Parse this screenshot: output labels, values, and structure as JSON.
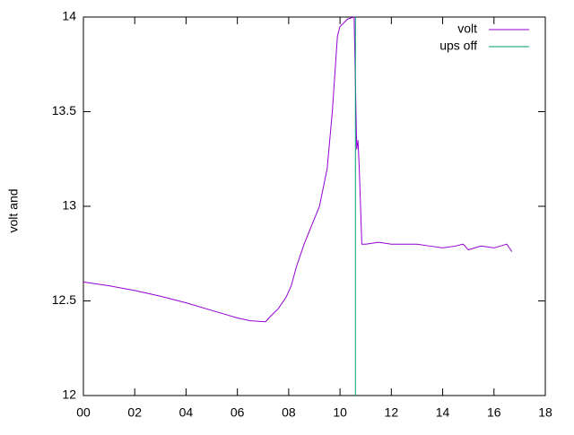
{
  "chart_data": {
    "type": "line",
    "y_label": "volt and",
    "xlim": [
      0,
      18
    ],
    "xticks": [
      {
        "value": 0,
        "label": "00"
      },
      {
        "value": 2,
        "label": "02"
      },
      {
        "value": 4,
        "label": "04"
      },
      {
        "value": 6,
        "label": "06"
      },
      {
        "value": 8,
        "label": "08"
      },
      10,
      12,
      14,
      16,
      18
    ],
    "ylim": [
      12,
      14
    ],
    "yticks": [
      12,
      12.5,
      13,
      13.5,
      14
    ],
    "legend": "top-right",
    "series": [
      {
        "name": "volt",
        "color": "#9400d3",
        "x": [
          0,
          1,
          2,
          3,
          4,
          5,
          6,
          6.5,
          7.1,
          7.3,
          7.6,
          7.9,
          8.1,
          8.3,
          8.6,
          8.9,
          9.2,
          9.5,
          9.7,
          9.9,
          10.0,
          10.3,
          10.55,
          10.6,
          10.65,
          10.7,
          10.75,
          10.85,
          11,
          11.5,
          12,
          13,
          13.5,
          14,
          14.5,
          14.8,
          15,
          15.5,
          16,
          16.5,
          16.7
        ],
        "values": [
          12.6,
          12.58,
          12.555,
          12.525,
          12.49,
          12.45,
          12.41,
          12.395,
          12.39,
          12.42,
          12.46,
          12.52,
          12.58,
          12.68,
          12.8,
          12.9,
          13.0,
          13.2,
          13.5,
          13.9,
          13.95,
          13.99,
          14.0,
          13.65,
          13.3,
          13.35,
          13.2,
          12.8,
          12.8,
          12.81,
          12.8,
          12.8,
          12.79,
          12.78,
          12.79,
          12.8,
          12.77,
          12.79,
          12.78,
          12.8,
          12.76
        ]
      },
      {
        "name": "ups off",
        "color": "#009e73",
        "x": [
          10.6,
          10.6
        ],
        "values": [
          12,
          14
        ]
      }
    ]
  }
}
